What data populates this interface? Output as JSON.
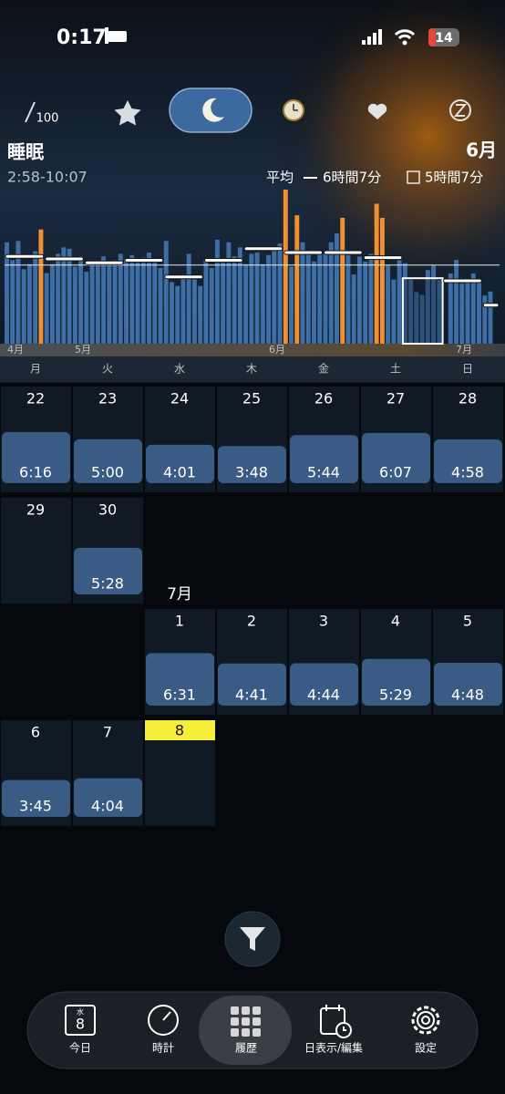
{
  "status_bar": {
    "time": "0:17",
    "battery": "14"
  },
  "score_tab": "100",
  "header": {
    "title": "睡眠",
    "month": "6月",
    "time_range": "2:58-10:07",
    "average_label": "平均",
    "average": "6時間7分",
    "other": "5時間7分"
  },
  "sleep_chart": {
    "ylim": [
      0,
      12
    ],
    "color": "#3d6ea6",
    "long_color": "#f0902e",
    "values": [
      7.9,
      6.5,
      8.0,
      5.8,
      6.2,
      7.2,
      8.9,
      5.5,
      6.2,
      7.0,
      7.5,
      7.4,
      6.0,
      6.8,
      5.6,
      6.3,
      6.4,
      6.8,
      6.2,
      6.5,
      7.0,
      6.6,
      6.9,
      6.4,
      6.7,
      7.1,
      6.5,
      5.9,
      8.0,
      4.8,
      4.5,
      5.4,
      7.0,
      5.0,
      4.5,
      6.5,
      5.9,
      8.1,
      6.6,
      7.9,
      6.8,
      7.5,
      6.2,
      7.0,
      7.1,
      6.2,
      6.9,
      7.5,
      7.8,
      12.0,
      6.0,
      10.0,
      7.9,
      7.0,
      6.4,
      7.2,
      7.1,
      7.9,
      8.6,
      9.8,
      6.9,
      5.4,
      6.8,
      6.4,
      7.0,
      10.9,
      9.8,
      6.1,
      5.0,
      6.5,
      6.27,
      5.0,
      4.02,
      3.8,
      5.73,
      6.12,
      4.97,
      null,
      5.47,
      6.52,
      4.68,
      4.73,
      5.48,
      4.8,
      3.75,
      4.07
    ],
    "long_nights": [
      6,
      49,
      51,
      59,
      65,
      66
    ],
    "weekly_averages": [
      6.8,
      6.6,
      6.3,
      6.5,
      5.2,
      6.5,
      7.4,
      7.1,
      7.1,
      6.7,
      5.1,
      4.9,
      3.0
    ],
    "selected_week": 10,
    "average_hours": 6.12,
    "month_labels": [
      "4月",
      "5月",
      "6月",
      "7月"
    ],
    "weekdays": [
      "月",
      "火",
      "水",
      "木",
      "金",
      "土",
      "日"
    ]
  },
  "calendar": {
    "july_label": "7月",
    "weeks": [
      [
        {
          "day": "22",
          "duration": "6:16"
        },
        {
          "day": "23",
          "duration": "5:00"
        },
        {
          "day": "24",
          "duration": "4:01"
        },
        {
          "day": "25",
          "duration": "3:48"
        },
        {
          "day": "26",
          "duration": "5:44"
        },
        {
          "day": "27",
          "duration": "6:07"
        },
        {
          "day": "28",
          "duration": "4:58"
        }
      ],
      [
        {
          "day": "29"
        },
        {
          "day": "30",
          "duration": "5:28"
        },
        null,
        null,
        null,
        null,
        null
      ],
      [
        null,
        null,
        {
          "day": "1",
          "duration": "6:31"
        },
        {
          "day": "2",
          "duration": "4:41"
        },
        {
          "day": "3",
          "duration": "4:44"
        },
        {
          "day": "4",
          "duration": "5:29"
        },
        {
          "day": "5",
          "duration": "4:48"
        }
      ],
      [
        {
          "day": "6",
          "duration": "3:45"
        },
        {
          "day": "7",
          "duration": "4:04"
        },
        {
          "day": "8",
          "today": true
        },
        null,
        null,
        null,
        null
      ]
    ]
  },
  "today_icon": {
    "weekday": "水",
    "day": "8"
  },
  "nav": [
    "今日",
    "時計",
    "履歴",
    "日表示/編集",
    "設定"
  ]
}
